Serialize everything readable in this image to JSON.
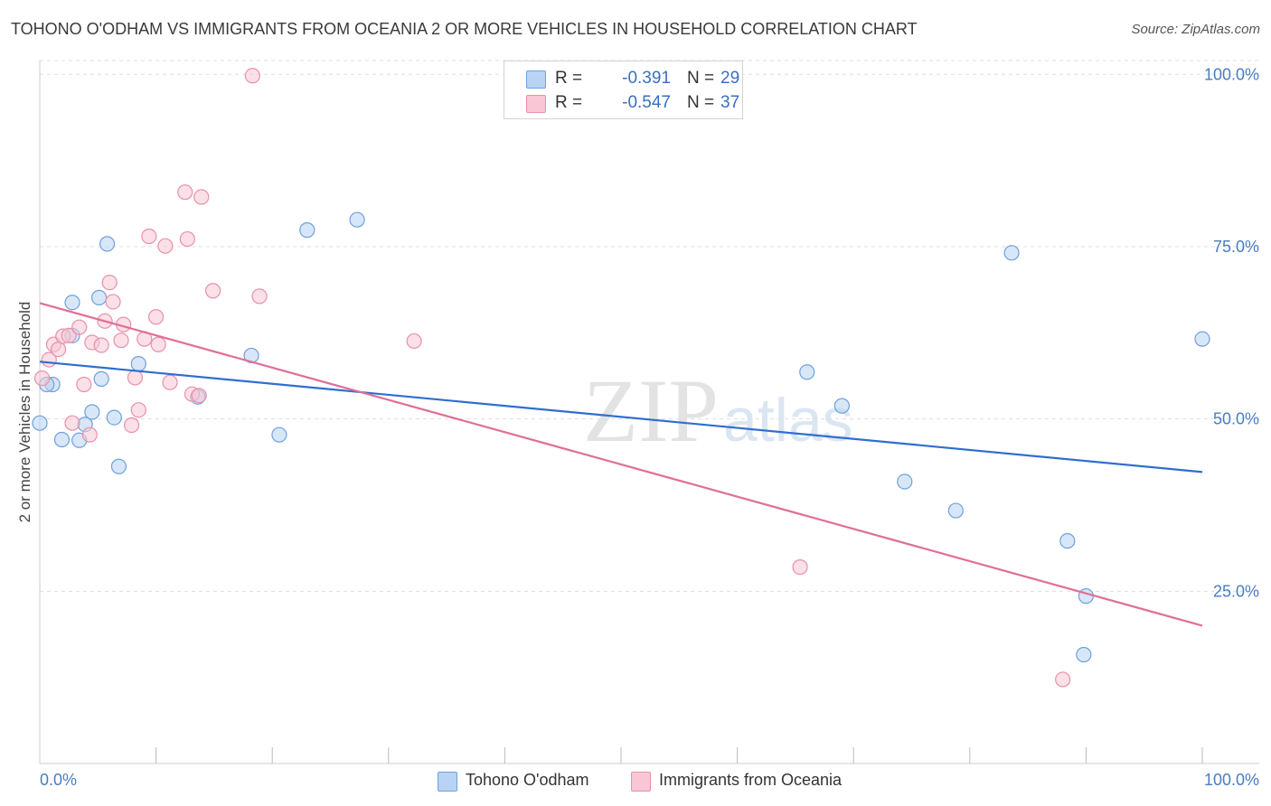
{
  "title": "TOHONO O'ODHAM VS IMMIGRANTS FROM OCEANIA 2 OR MORE VEHICLES IN HOUSEHOLD CORRELATION CHART",
  "source": "Source: ZipAtlas.com",
  "watermark": {
    "zip": "ZIP",
    "atlas": "atlas"
  },
  "stats": [
    {
      "r_label": "R =",
      "r_value": "-0.391",
      "n_label": "N =",
      "n_value": "29",
      "fill": "#b8d3f3",
      "stroke": "#6fa0dc"
    },
    {
      "r_label": "R =",
      "r_value": "-0.547",
      "n_label": "N =",
      "n_value": "37",
      "fill": "#f8c6d4",
      "stroke": "#e890ac"
    }
  ],
  "legend": [
    {
      "label": "Tohono O'odham",
      "fill": "#b8d3f3",
      "stroke": "#6fa0dc"
    },
    {
      "label": "Immigrants from Oceania",
      "fill": "#f8c6d4",
      "stroke": "#e890ac"
    }
  ],
  "chart_data": {
    "type": "scatter",
    "title": "TOHONO O'ODHAM VS IMMIGRANTS FROM OCEANIA 2 OR MORE VEHICLES IN HOUSEHOLD CORRELATION CHART",
    "xlabel": "",
    "ylabel": "2 or more Vehicles in Household",
    "xlim": [
      0,
      100
    ],
    "ylim": [
      0,
      102
    ],
    "x_tick_labels": [
      {
        "value": 0,
        "label": "0.0%"
      },
      {
        "value": 100,
        "label": "100.0%"
      }
    ],
    "y_tick_labels": [
      {
        "value": 25,
        "label": "25.0%"
      },
      {
        "value": 50,
        "label": "50.0%"
      },
      {
        "value": 75,
        "label": "75.0%"
      },
      {
        "value": 100,
        "label": "100.0%"
      }
    ],
    "series": [
      {
        "name": "Tohono O'odham",
        "color": "#6fa0dc",
        "fill": "#b8d3f3",
        "line_color": "#2f6ecf",
        "trend": {
          "x": [
            0,
            100
          ],
          "y": [
            58.3,
            42.3
          ]
        },
        "points": [
          {
            "x": 0.0,
            "y": 49.4
          },
          {
            "x": 1.1,
            "y": 55.0
          },
          {
            "x": 1.9,
            "y": 47.0
          },
          {
            "x": 2.8,
            "y": 62.1
          },
          {
            "x": 2.8,
            "y": 66.9
          },
          {
            "x": 3.4,
            "y": 46.9
          },
          {
            "x": 3.9,
            "y": 49.2
          },
          {
            "x": 4.5,
            "y": 51.0
          },
          {
            "x": 5.1,
            "y": 67.6
          },
          {
            "x": 5.3,
            "y": 55.8
          },
          {
            "x": 5.8,
            "y": 75.4
          },
          {
            "x": 6.4,
            "y": 50.2
          },
          {
            "x": 6.8,
            "y": 43.1
          },
          {
            "x": 8.5,
            "y": 58.0
          },
          {
            "x": 13.6,
            "y": 53.2
          },
          {
            "x": 18.2,
            "y": 59.2
          },
          {
            "x": 20.6,
            "y": 47.7
          },
          {
            "x": 23.0,
            "y": 77.4
          },
          {
            "x": 27.3,
            "y": 78.9
          },
          {
            "x": 66.0,
            "y": 56.8
          },
          {
            "x": 69.0,
            "y": 51.9
          },
          {
            "x": 74.4,
            "y": 40.9
          },
          {
            "x": 78.8,
            "y": 36.7
          },
          {
            "x": 83.6,
            "y": 74.1
          },
          {
            "x": 88.4,
            "y": 32.3
          },
          {
            "x": 90.0,
            "y": 24.3
          },
          {
            "x": 89.8,
            "y": 15.8
          },
          {
            "x": 100.0,
            "y": 61.6
          },
          {
            "x": 0.6,
            "y": 55.0
          }
        ]
      },
      {
        "name": "Immigrants from Oceania",
        "color": "#e890ac",
        "fill": "#f8c6d4",
        "line_color": "#e06f97",
        "trend": {
          "x": [
            0,
            100
          ],
          "y": [
            66.8,
            20.0
          ]
        },
        "points": [
          {
            "x": 0.2,
            "y": 55.9
          },
          {
            "x": 0.8,
            "y": 58.6
          },
          {
            "x": 1.2,
            "y": 60.8
          },
          {
            "x": 1.6,
            "y": 60.1
          },
          {
            "x": 2.0,
            "y": 62.0
          },
          {
            "x": 2.5,
            "y": 62.1
          },
          {
            "x": 2.8,
            "y": 49.4
          },
          {
            "x": 3.4,
            "y": 63.3
          },
          {
            "x": 3.8,
            "y": 55.0
          },
          {
            "x": 4.3,
            "y": 47.7
          },
          {
            "x": 4.5,
            "y": 61.1
          },
          {
            "x": 5.3,
            "y": 60.7
          },
          {
            "x": 5.6,
            "y": 64.2
          },
          {
            "x": 6.0,
            "y": 69.8
          },
          {
            "x": 6.3,
            "y": 67.0
          },
          {
            "x": 7.2,
            "y": 63.7
          },
          {
            "x": 7.0,
            "y": 61.4
          },
          {
            "x": 7.9,
            "y": 49.1
          },
          {
            "x": 8.2,
            "y": 56.0
          },
          {
            "x": 8.5,
            "y": 51.3
          },
          {
            "x": 9.0,
            "y": 61.6
          },
          {
            "x": 9.4,
            "y": 76.5
          },
          {
            "x": 10.0,
            "y": 64.8
          },
          {
            "x": 10.2,
            "y": 60.8
          },
          {
            "x": 10.8,
            "y": 75.1
          },
          {
            "x": 11.2,
            "y": 55.3
          },
          {
            "x": 12.5,
            "y": 82.9
          },
          {
            "x": 12.7,
            "y": 76.1
          },
          {
            "x": 13.1,
            "y": 53.6
          },
          {
            "x": 13.9,
            "y": 82.2
          },
          {
            "x": 14.9,
            "y": 68.6
          },
          {
            "x": 18.3,
            "y": 99.8
          },
          {
            "x": 18.9,
            "y": 67.8
          },
          {
            "x": 32.2,
            "y": 61.3
          },
          {
            "x": 65.4,
            "y": 28.5
          },
          {
            "x": 88.0,
            "y": 12.2
          },
          {
            "x": 13.7,
            "y": 53.4
          }
        ]
      }
    ]
  }
}
